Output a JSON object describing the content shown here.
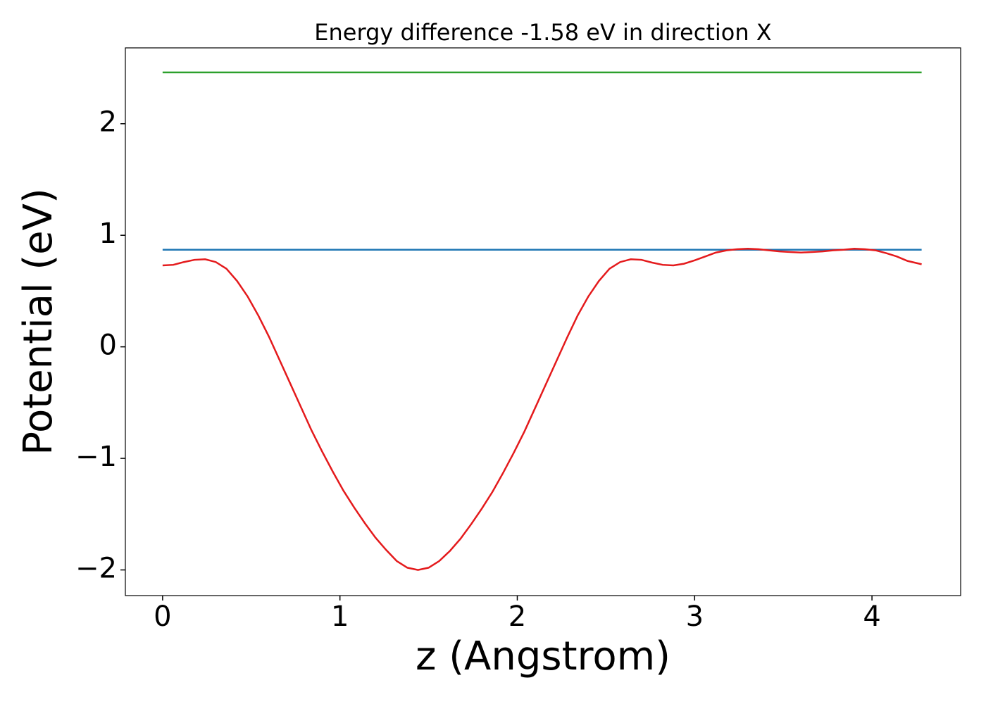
{
  "chart_data": {
    "type": "line",
    "title": "Energy difference -1.58 eV in direction X",
    "xlabel": "z (Angstrom)",
    "ylabel": "Potential (eV)",
    "xlim": [
      -0.21,
      4.5
    ],
    "ylim": [
      -2.23,
      2.68
    ],
    "xticks": [
      0,
      1,
      2,
      3,
      4
    ],
    "yticks": [
      {
        "value": -2,
        "label": "−2"
      },
      {
        "value": -1,
        "label": "−1"
      },
      0,
      1,
      2
    ],
    "grid": false,
    "series": [
      {
        "color": "#2ca02c",
        "x": [
          0,
          4.28
        ],
        "values": [
          2.46,
          2.46
        ]
      },
      {
        "color": "#1f77b4",
        "x": [
          0,
          4.28
        ],
        "values": [
          0.87,
          0.87
        ]
      },
      {
        "color": "#e41a1c",
        "x": [
          0,
          0.06,
          0.12,
          0.18,
          0.24,
          0.3,
          0.36,
          0.42,
          0.48,
          0.54,
          0.6,
          0.66,
          0.72,
          0.78,
          0.84,
          0.9,
          0.96,
          1.02,
          1.08,
          1.14,
          1.2,
          1.26,
          1.32,
          1.38,
          1.44,
          1.5,
          1.56,
          1.62,
          1.68,
          1.74,
          1.8,
          1.86,
          1.92,
          1.98,
          2.04,
          2.1,
          2.16,
          2.22,
          2.28,
          2.34,
          2.4,
          2.46,
          2.52,
          2.58,
          2.64,
          2.7,
          2.76,
          2.82,
          2.88,
          2.94,
          3.0,
          3.06,
          3.12,
          3.18,
          3.24,
          3.3,
          3.36,
          3.42,
          3.48,
          3.54,
          3.6,
          3.66,
          3.72,
          3.78,
          3.84,
          3.9,
          3.96,
          4.02,
          4.08,
          4.14,
          4.2,
          4.28
        ],
        "values": [
          0.73,
          0.735,
          0.76,
          0.78,
          0.785,
          0.76,
          0.7,
          0.59,
          0.45,
          0.28,
          0.09,
          -0.12,
          -0.33,
          -0.54,
          -0.75,
          -0.94,
          -1.12,
          -1.29,
          -1.44,
          -1.58,
          -1.71,
          -1.82,
          -1.92,
          -1.98,
          -2.0,
          -1.98,
          -1.92,
          -1.83,
          -1.72,
          -1.59,
          -1.45,
          -1.3,
          -1.13,
          -0.95,
          -0.76,
          -0.55,
          -0.34,
          -0.13,
          0.08,
          0.28,
          0.45,
          0.59,
          0.7,
          0.76,
          0.785,
          0.78,
          0.755,
          0.735,
          0.73,
          0.745,
          0.775,
          0.81,
          0.845,
          0.865,
          0.875,
          0.88,
          0.875,
          0.865,
          0.855,
          0.85,
          0.845,
          0.85,
          0.855,
          0.865,
          0.87,
          0.88,
          0.875,
          0.865,
          0.84,
          0.81,
          0.77,
          0.74
        ]
      }
    ]
  }
}
